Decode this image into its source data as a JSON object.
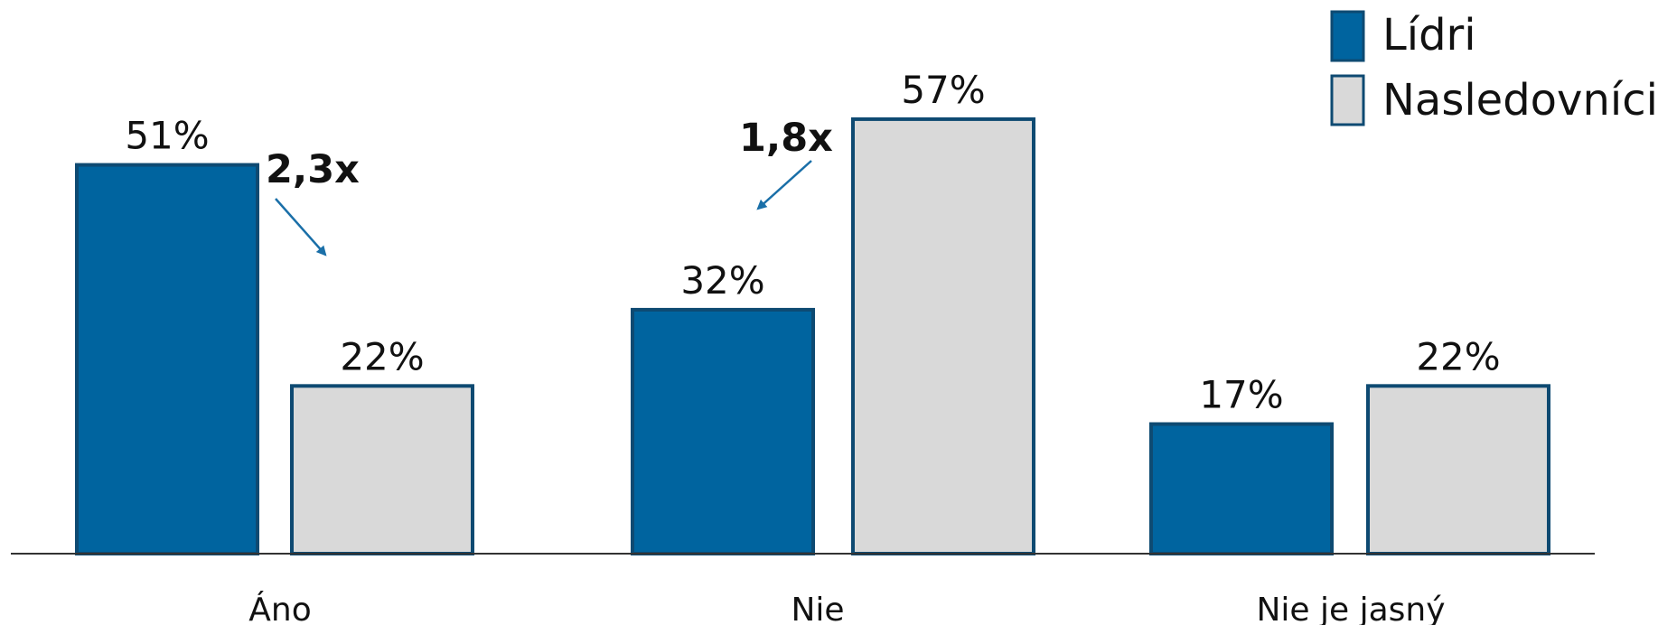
{
  "chart_data": {
    "type": "bar",
    "categories": [
      "Áno",
      "Nie",
      "Nie je jasný"
    ],
    "series": [
      {
        "name": "Lídri",
        "values": [
          51,
          32,
          17
        ],
        "labels": [
          "51%",
          "32%",
          "17%"
        ]
      },
      {
        "name": "Nasledovníci",
        "values": [
          22,
          57,
          22
        ],
        "labels": [
          "22%",
          "57%",
          "22%"
        ]
      }
    ],
    "annotations": [
      "2,3x",
      "1,8x"
    ],
    "ylim": [
      0,
      60
    ],
    "grid": false,
    "legend_position": "top-right"
  },
  "colors": {
    "Lídri": "#00649F",
    "Nasledovníci": "#D9D9D9",
    "outline": "#0E4A72",
    "arrow": "#1A6FA8",
    "axis": "#333333"
  }
}
